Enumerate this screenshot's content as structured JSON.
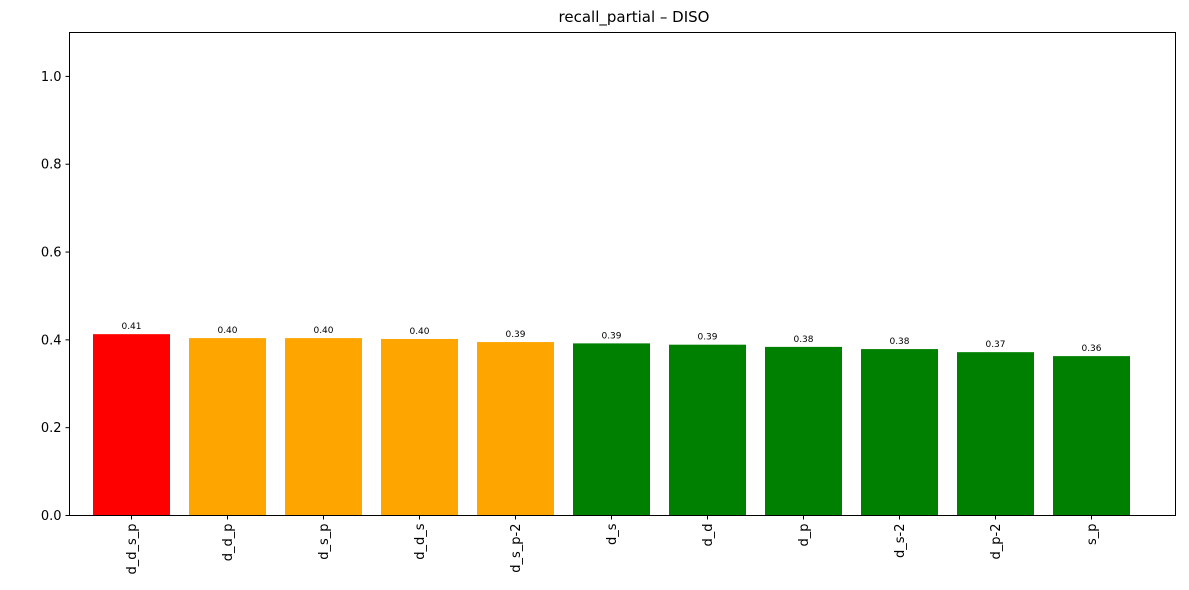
{
  "chart_data": {
    "type": "bar",
    "title": "recall_partial – DISO",
    "xlabel": "",
    "ylabel": "",
    "ylim": [
      0,
      1.1
    ],
    "yticks": [
      0.0,
      0.2,
      0.4,
      0.6,
      0.8,
      1.0
    ],
    "ytick_labels": [
      "0.0",
      "0.2",
      "0.4",
      "0.6",
      "0.8",
      "1.0"
    ],
    "grid": false,
    "categories": [
      "d_d_s_p",
      "d_d_p",
      "d_s_p",
      "d_d_s",
      "d_s_p-2",
      "d_s",
      "d_d",
      "d_p",
      "d_s-2",
      "d_p-2",
      "s_p"
    ],
    "values": [
      0.413,
      0.404,
      0.404,
      0.402,
      0.395,
      0.392,
      0.389,
      0.384,
      0.379,
      0.372,
      0.363
    ],
    "value_labels": [
      "0.41",
      "0.40",
      "0.40",
      "0.40",
      "0.39",
      "0.39",
      "0.39",
      "0.38",
      "0.38",
      "0.37",
      "0.36"
    ],
    "bar_colors": [
      "#ff0000",
      "#ffa500",
      "#ffa500",
      "#ffa500",
      "#ffa500",
      "#008000",
      "#008000",
      "#008000",
      "#008000",
      "#008000",
      "#008000"
    ]
  }
}
